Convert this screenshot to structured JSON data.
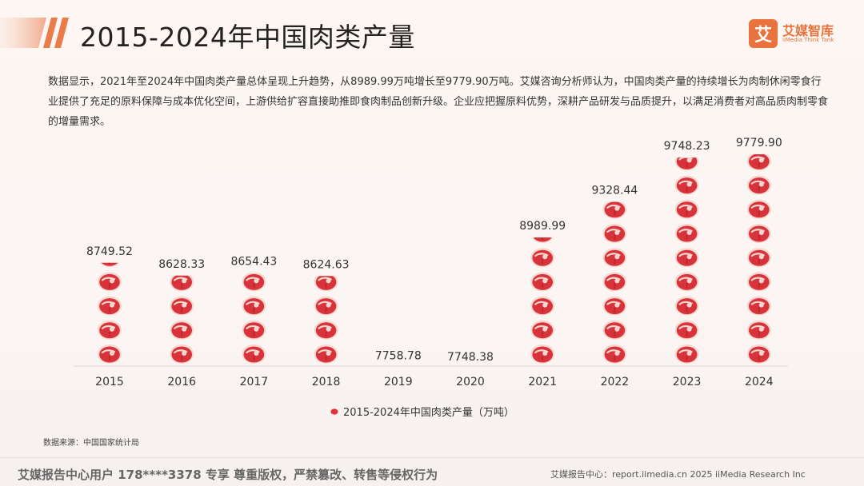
{
  "header": {
    "title": "2015-2024年中国肉类产量",
    "logo_mark": "艾",
    "logo_cn": "艾媒智库",
    "logo_en": "iiMedia Think Tank"
  },
  "description": "数据显示，2021年至2024年中国肉类产量总体呈现上升趋势，从8989.99万吨增长至9779.90万吨。艾媒咨询分析师认为，中国肉类产量的持续增长为肉制休闲零食行业提供了充足的原料保障与成本优化空间，上游供给扩容直接助推即食肉制品创新升级。企业应把握原料优势，深耕产品研发与品质提升，以满足消费者对高品质肉制零食的增量需求。",
  "source": "数据来源：中国国家统计局",
  "footer": {
    "left": "艾媒报告中心用户 178****3378 专享 尊重版权，严禁篡改、转售等侵权行为",
    "right": "艾媒报告中心：report.iimedia.cn  2025 iiMedia Research Inc"
  },
  "colors": {
    "accent": "#e8733c",
    "meat": "#d8323a",
    "meat_edge": "#f6d7cf"
  },
  "chart_data": {
    "type": "bar",
    "categories": [
      "2015",
      "2016",
      "2017",
      "2018",
      "2019",
      "2020",
      "2021",
      "2022",
      "2023",
      "2024"
    ],
    "series": [
      {
        "name": "2015-2024年中国肉类产量（万吨）",
        "values": [
          8749.52,
          8628.33,
          8654.43,
          8624.63,
          7758.78,
          7748.38,
          8989.99,
          9328.44,
          9748.23,
          9779.9
        ]
      }
    ],
    "value_labels": [
      "8749.52",
      "8628.33",
      "8654.43",
      "8624.63",
      "7758.78",
      "7748.38",
      "8989.99",
      "9328.44",
      "9748.23",
      "9779.90"
    ],
    "legend_label": "2015-2024年中国肉类产量（万吨）",
    "legend_position": "bottom",
    "mark": "pictograph-meat-icon",
    "grid": false
  }
}
